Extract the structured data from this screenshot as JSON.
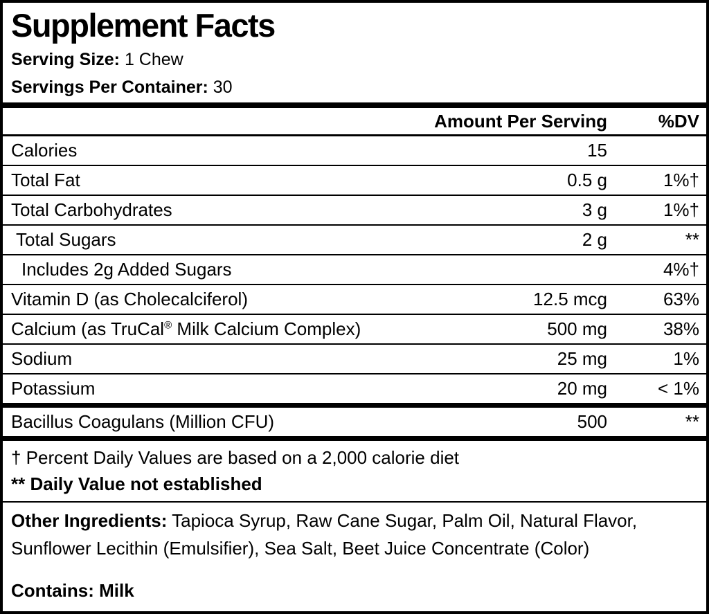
{
  "header": {
    "title": "Supplement Facts",
    "serving_size_label": "Serving Size:",
    "serving_size_value": "1 Chew",
    "servings_per_container_label": "Servings Per Container:",
    "servings_per_container_value": "30"
  },
  "table": {
    "columns": {
      "amount": "Amount Per Serving",
      "dv": "%DV"
    },
    "rows": [
      {
        "name": "Calories",
        "amount": "15",
        "dv": ""
      },
      {
        "name": "Total Fat",
        "amount": "0.5 g",
        "dv": "1%†"
      },
      {
        "name": "Total Carbohydrates",
        "amount": "3 g",
        "dv": "1%†"
      },
      {
        "name": "Total Sugars",
        "amount": "2 g",
        "dv": "**"
      },
      {
        "name": "Includes 2g Added Sugars",
        "amount": "",
        "dv": "4%†"
      },
      {
        "name": "Vitamin D (as Cholecalciferol)",
        "amount": "12.5 mcg",
        "dv": "63%"
      },
      {
        "name": "Calcium (as TruCal® Milk Calcium Complex)",
        "amount": "500 mg",
        "dv": "38%"
      },
      {
        "name": "Sodium",
        "amount": "25 mg",
        "dv": "1%"
      },
      {
        "name": "Potassium",
        "amount": "20 mg",
        "dv": "< 1%"
      }
    ],
    "probiotic_row": {
      "name": "Bacillus Coagulans (Million CFU)",
      "amount": "500",
      "dv": "**"
    }
  },
  "footnotes": {
    "daily_value_note": "† Percent Daily Values are based on a 2,000 calorie diet",
    "not_established_note": "** Daily Value not established"
  },
  "ingredients": {
    "label": "Other Ingredients:",
    "text": "Tapioca Syrup, Raw Cane Sugar, Palm Oil, Natural Flavor, Sunflower Lecithin (Emulsifier), Sea Salt, Beet Juice Concentrate (Color)"
  },
  "allergen": {
    "label": "Contains:",
    "value": "Milk"
  },
  "colors": {
    "text": "#000000",
    "background": "#ffffff",
    "border": "#000000"
  }
}
